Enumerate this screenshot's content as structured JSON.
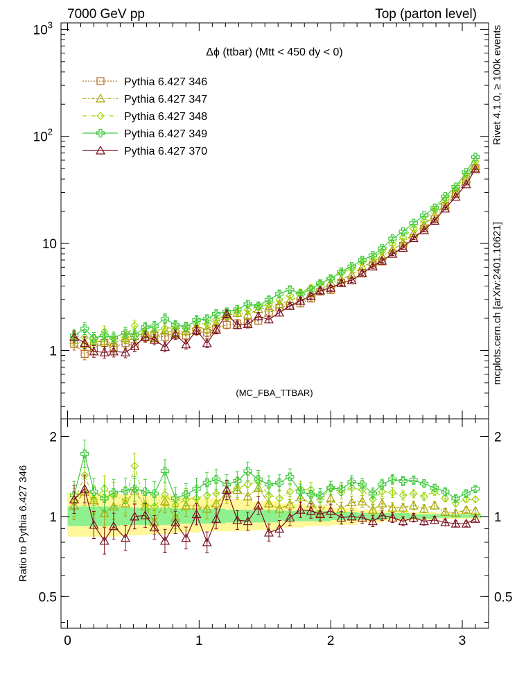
{
  "header": {
    "left": "7000 GeV pp",
    "right": "Top (parton level)"
  },
  "side_labels": {
    "rivet": "Rivet 4.1.0, ≥ 100k events",
    "mcplots": "mcplots.cern.ch [arXiv:2401.10621]"
  },
  "chart_data": [
    {
      "type": "line",
      "panel": "main",
      "title": "Δϕ (ttbar) (Mtt < 450 dy < 0)",
      "watermark": "(MC_FBA_TTBAR)",
      "xlabel": "",
      "ylabel": "",
      "xlim": [
        -0.05,
        3.2
      ],
      "ylim": [
        0.23,
        1150
      ],
      "yscale": "log",
      "legend_position": "top-left",
      "yticks": [
        {
          "value": 1,
          "label": "1"
        },
        {
          "value": 10,
          "label": "10"
        },
        {
          "value": 100,
          "label": "10²"
        },
        {
          "value": 1000,
          "label": "10³"
        }
      ],
      "xticks": [
        0,
        1,
        2,
        3
      ],
      "x": [
        0.05,
        0.13,
        0.2,
        0.28,
        0.35,
        0.44,
        0.51,
        0.59,
        0.66,
        0.74,
        0.82,
        0.9,
        0.98,
        1.06,
        1.13,
        1.21,
        1.29,
        1.37,
        1.45,
        1.53,
        1.61,
        1.69,
        1.77,
        1.85,
        1.92,
        2.0,
        2.08,
        2.16,
        2.24,
        2.32,
        2.39,
        2.47,
        2.55,
        2.63,
        2.71,
        2.79,
        2.87,
        2.95,
        3.03,
        3.1
      ],
      "series": [
        {
          "name": "Pythia 6.427 346",
          "color": "#b06c1c",
          "marker": "square",
          "dash": "2,2",
          "values": [
            1.15,
            0.93,
            1.05,
            1.18,
            1.07,
            1.17,
            1.1,
            1.33,
            1.38,
            1.34,
            1.48,
            1.38,
            1.52,
            1.47,
            1.6,
            1.74,
            1.79,
            1.82,
            1.9,
            2.25,
            2.52,
            2.62,
            2.75,
            3.06,
            3.55,
            3.68,
            4.3,
            4.52,
            5.3,
            6.34,
            6.8,
            8.06,
            9.49,
            11.3,
            13.8,
            16.8,
            22.2,
            29.0,
            38.0,
            50.5
          ]
        },
        {
          "name": "Pythia 6.427 347",
          "color": "#a8a400",
          "marker": "triangle",
          "dash": "6,2,2,2",
          "values": [
            1.26,
            1.15,
            1.21,
            1.22,
            1.17,
            1.31,
            1.37,
            1.45,
            1.31,
            1.53,
            1.46,
            1.52,
            1.67,
            1.58,
            1.8,
            2.12,
            2.25,
            2.16,
            2.44,
            2.52,
            2.7,
            2.92,
            3.25,
            3.42,
            3.65,
            4.3,
            4.62,
            5.1,
            6.05,
            6.7,
            7.6,
            8.72,
            10.2,
            12.4,
            14.8,
            18.5,
            23.1,
            29.8,
            40.2,
            53.0
          ]
        },
        {
          "name": "Pythia 6.427 348",
          "color": "#9bd400",
          "marker": "diamond",
          "dash": "6,3,1,3",
          "values": [
            1.3,
            1.33,
            1.22,
            1.5,
            1.28,
            1.34,
            1.71,
            1.48,
            1.51,
            1.62,
            1.63,
            1.6,
            1.78,
            1.77,
            1.95,
            2.18,
            2.3,
            2.4,
            2.57,
            2.7,
            2.96,
            3.25,
            3.5,
            3.86,
            4.12,
            4.7,
            5.28,
            5.8,
            6.7,
            7.35,
            8.43,
            9.9,
            11.4,
            13.8,
            16.4,
            20.8,
            25.9,
            32.5,
            44.0,
            58.5
          ]
        },
        {
          "name": "Pythia 6.427 349",
          "color": "#3ec93e",
          "marker": "cross",
          "dash": "",
          "values": [
            1.38,
            1.6,
            1.3,
            1.38,
            1.32,
            1.46,
            1.4,
            1.65,
            1.68,
            1.98,
            1.73,
            1.67,
            1.93,
            1.97,
            2.2,
            2.3,
            2.43,
            2.7,
            2.62,
            2.98,
            3.38,
            3.7,
            3.4,
            3.7,
            4.25,
            4.7,
            5.46,
            6.1,
            7.0,
            7.75,
            9.0,
            11.1,
            12.9,
            15.5,
            18.3,
            21.5,
            27.5,
            33.8,
            46.2,
            64.3
          ]
        },
        {
          "name": "Pythia 6.427 370",
          "color": "#7a0f1e",
          "marker": "triangle",
          "dash": "",
          "values": [
            1.34,
            1.18,
            0.98,
            0.96,
            0.98,
            0.96,
            1.1,
            1.35,
            1.26,
            1.08,
            1.4,
            1.14,
            1.55,
            1.17,
            1.56,
            2.2,
            1.73,
            1.76,
            2.09,
            1.95,
            2.26,
            2.61,
            2.91,
            3.23,
            3.63,
            3.85,
            4.27,
            4.53,
            5.26,
            6.1,
            6.9,
            8.0,
            9.1,
            11.2,
            13.3,
            16.3,
            21.2,
            27.3,
            35.7,
            49.4
          ]
        }
      ]
    },
    {
      "type": "line",
      "panel": "ratio",
      "ylabel": "Ratio to Pythia 6.427 346",
      "xlabel": "",
      "xlim": [
        -0.05,
        3.2
      ],
      "ylim": [
        0.38,
        2.33
      ],
      "yscale": "log",
      "yticks": [
        {
          "value": 0.5,
          "label": "0.5"
        },
        {
          "value": 1,
          "label": "1"
        },
        {
          "value": 2,
          "label": "2"
        }
      ],
      "xticks": [
        0,
        1,
        2,
        3
      ],
      "band_edges": [
        0.0,
        0.2,
        0.4,
        0.6,
        0.8,
        1.0,
        1.2,
        1.4,
        1.6,
        1.8,
        2.0,
        2.2,
        2.4,
        2.6,
        2.8,
        3.0,
        3.14
      ],
      "band_yellow_lo": [
        0.84,
        0.84,
        0.85,
        0.86,
        0.87,
        0.88,
        0.88,
        0.89,
        0.91,
        0.92,
        0.93,
        0.95,
        0.96,
        0.97,
        0.98,
        0.98
      ],
      "band_yellow_hi": [
        1.23,
        1.22,
        1.21,
        1.2,
        1.18,
        1.17,
        1.16,
        1.14,
        1.12,
        1.1,
        1.08,
        1.06,
        1.05,
        1.04,
        1.03,
        1.03
      ],
      "band_green_lo": [
        0.92,
        0.92,
        0.93,
        0.93,
        0.94,
        0.94,
        0.95,
        0.95,
        0.96,
        0.96,
        0.97,
        0.97,
        0.98,
        0.98,
        0.99,
        0.99
      ],
      "band_green_hi": [
        1.09,
        1.09,
        1.08,
        1.08,
        1.07,
        1.07,
        1.06,
        1.06,
        1.05,
        1.05,
        1.04,
        1.03,
        1.03,
        1.02,
        1.02,
        1.02
      ],
      "series": [
        {
          "name": "Pythia 6.427 347",
          "color": "#a8a400",
          "marker": "triangle",
          "dash": "6,2,2,2",
          "values": [
            1.1,
            1.24,
            1.15,
            1.03,
            1.09,
            1.12,
            1.25,
            1.09,
            0.95,
            1.14,
            0.99,
            1.1,
            1.1,
            1.07,
            1.12,
            1.22,
            1.26,
            1.19,
            1.28,
            1.12,
            1.07,
            1.11,
            1.18,
            1.12,
            1.03,
            1.17,
            1.07,
            1.13,
            1.14,
            1.06,
            1.12,
            1.08,
            1.08,
            1.1,
            1.07,
            1.1,
            1.04,
            1.03,
            1.06,
            1.05
          ]
        },
        {
          "name": "Pythia 6.427 348",
          "color": "#9bd400",
          "marker": "diamond",
          "dash": "6,3,1,3",
          "values": [
            1.13,
            1.43,
            1.16,
            1.27,
            1.2,
            1.15,
            1.55,
            1.11,
            1.09,
            1.21,
            1.1,
            1.16,
            1.17,
            1.2,
            1.22,
            1.25,
            1.28,
            1.32,
            1.35,
            1.2,
            1.17,
            1.24,
            1.27,
            1.26,
            1.16,
            1.28,
            1.23,
            1.28,
            1.26,
            1.16,
            1.24,
            1.23,
            1.2,
            1.22,
            1.19,
            1.24,
            1.17,
            1.12,
            1.16,
            1.16
          ]
        },
        {
          "name": "Pythia 6.427 349",
          "color": "#3ec93e",
          "marker": "cross",
          "dash": "",
          "values": [
            1.2,
            1.72,
            1.24,
            1.17,
            1.23,
            1.25,
            1.27,
            1.24,
            1.22,
            1.48,
            1.17,
            1.21,
            1.27,
            1.34,
            1.38,
            1.32,
            1.36,
            1.48,
            1.38,
            1.32,
            1.34,
            1.41,
            1.24,
            1.21,
            1.2,
            1.28,
            1.27,
            1.35,
            1.32,
            1.22,
            1.32,
            1.38,
            1.36,
            1.37,
            1.33,
            1.28,
            1.24,
            1.17,
            1.22,
            1.27
          ]
        },
        {
          "name": "Pythia 6.427 370",
          "color": "#7a0f1e",
          "marker": "triangle",
          "dash": "",
          "values": [
            1.16,
            1.27,
            0.93,
            0.81,
            0.92,
            0.83,
            1.0,
            1.01,
            0.91,
            0.81,
            0.95,
            0.83,
            1.02,
            0.8,
            0.98,
            1.26,
            0.97,
            0.96,
            1.1,
            0.87,
            0.9,
            0.99,
            1.06,
            1.05,
            1.02,
            1.05,
            0.99,
            1.0,
            0.99,
            0.96,
            1.01,
            0.99,
            0.96,
            0.99,
            0.96,
            0.97,
            0.95,
            0.94,
            0.94,
            0.98
          ]
        }
      ]
    }
  ]
}
